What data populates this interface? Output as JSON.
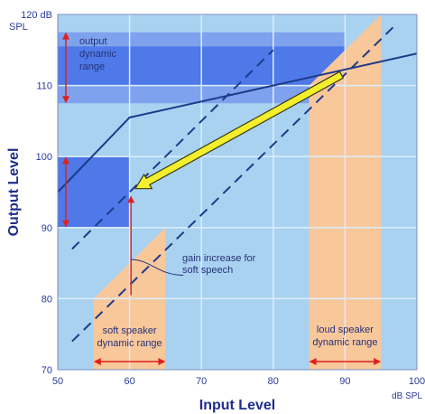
{
  "chart_data": {
    "type": "line",
    "xlabel": "Input Level",
    "ylabel": "Output Level",
    "x_unit_label": "dB SPL",
    "y_unit_label_top": "120 dB",
    "y_unit_label_bottom": "SPL",
    "xlim": [
      50,
      100
    ],
    "ylim": [
      70,
      120
    ],
    "x_ticks": [
      50,
      60,
      70,
      80,
      90,
      100
    ],
    "y_ticks": [
      70,
      80,
      90,
      100,
      110
    ],
    "grid": true,
    "colors": {
      "background": "#a9d2f0",
      "grid": "#dbeeff",
      "region_fill": "#f8c79a",
      "output_band": "#4f79e8",
      "output_band_light": "#7fa2ee",
      "lines": "#1d3a8a",
      "arrow": "#f3ef2d",
      "red": "#e0201d"
    },
    "regions": [
      {
        "label": "soft speaker dynamic range",
        "x_range": [
          55,
          65
        ]
      },
      {
        "label": "loud speaker dynamic range",
        "x_range": [
          85,
          95
        ]
      }
    ],
    "output_bands": [
      {
        "label": "output dynamic range",
        "y_range": [
          107.5,
          117.5
        ]
      },
      {
        "label": "",
        "y_range": [
          90,
          100
        ]
      }
    ],
    "series": [
      {
        "style": "solid",
        "x": [
          50,
          60,
          100
        ],
        "y": [
          95,
          105.5,
          114.5
        ]
      },
      {
        "style": "dashed",
        "x": [
          52,
          97
        ],
        "y": [
          74,
          118.5
        ]
      },
      {
        "style": "dashed",
        "x": [
          52,
          80
        ],
        "y": [
          87,
          115
        ]
      },
      {
        "style": "solid",
        "x": [
          50,
          100
        ],
        "y": [
          70,
          120
        ]
      }
    ],
    "annotations": [
      {
        "lines": [
          "output",
          "dynamic",
          "range"
        ]
      },
      {
        "lines": [
          "gain increase for",
          "soft speech"
        ]
      },
      {
        "lines": [
          "soft speaker",
          "dynamic range"
        ]
      },
      {
        "lines": [
          "loud speaker",
          "dynamic range"
        ]
      }
    ]
  }
}
